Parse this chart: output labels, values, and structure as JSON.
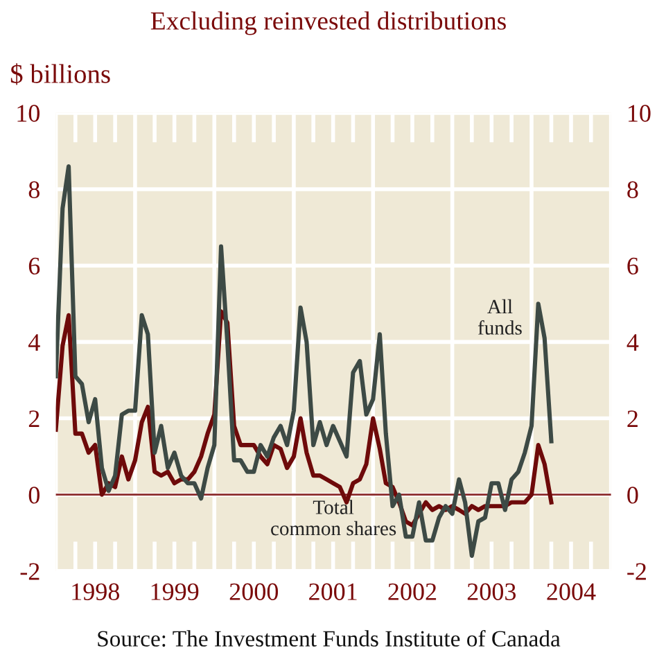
{
  "chart_data": {
    "type": "line",
    "title": "Excluding reinvested distributions",
    "ylabel": "$ billions",
    "x": [
      "1998-01",
      "1998-02",
      "1998-03",
      "1998-04",
      "1998-05",
      "1998-06",
      "1998-07",
      "1998-08",
      "1998-09",
      "1998-10",
      "1998-11",
      "1998-12",
      "1999-01",
      "1999-02",
      "1999-03",
      "1999-04",
      "1999-05",
      "1999-06",
      "1999-07",
      "1999-08",
      "1999-09",
      "1999-10",
      "1999-11",
      "1999-12",
      "2000-01",
      "2000-02",
      "2000-03",
      "2000-04",
      "2000-05",
      "2000-06",
      "2000-07",
      "2000-08",
      "2000-09",
      "2000-10",
      "2000-11",
      "2000-12",
      "2001-01",
      "2001-02",
      "2001-03",
      "2001-04",
      "2001-05",
      "2001-06",
      "2001-07",
      "2001-08",
      "2001-09",
      "2001-10",
      "2001-11",
      "2001-12",
      "2002-01",
      "2002-02",
      "2002-03",
      "2002-04",
      "2002-05",
      "2002-06",
      "2002-07",
      "2002-08",
      "2002-09",
      "2002-10",
      "2002-11",
      "2002-12",
      "2003-01",
      "2003-02",
      "2003-03",
      "2003-04",
      "2003-05",
      "2003-06",
      "2003-07",
      "2003-08",
      "2003-09",
      "2003-10",
      "2003-11",
      "2003-12",
      "2004-01",
      "2004-02",
      "2004-03",
      "2004-04"
    ],
    "series": [
      {
        "name": "All\nfunds",
        "color": "#3d4a45",
        "values": [
          3.1,
          7.5,
          8.6,
          3.1,
          2.9,
          1.9,
          2.5,
          0.7,
          0.1,
          0.5,
          2.1,
          2.2,
          2.2,
          4.7,
          4.2,
          1.1,
          1.8,
          0.7,
          1.1,
          0.5,
          0.3,
          0.3,
          -0.1,
          0.7,
          1.3,
          6.5,
          4.0,
          0.9,
          0.9,
          0.6,
          0.6,
          1.3,
          1.0,
          1.5,
          1.8,
          1.3,
          2.2,
          4.9,
          4.0,
          1.3,
          1.9,
          1.3,
          1.8,
          1.4,
          1.0,
          3.2,
          3.5,
          2.1,
          2.5,
          4.2,
          1.6,
          -0.3,
          0.0,
          -1.1,
          -1.1,
          -0.2,
          -1.2,
          -1.2,
          -0.6,
          -0.3,
          -0.5,
          0.4,
          -0.2,
          -1.6,
          -0.7,
          -0.6,
          0.3,
          0.3,
          -0.4,
          0.4,
          0.6,
          1.1,
          1.8,
          5.0,
          4.1,
          1.4
        ]
      },
      {
        "name": "Total\ncommon shares",
        "color": "#6e0a0a",
        "values": [
          1.7,
          3.9,
          4.7,
          1.6,
          1.6,
          1.1,
          1.3,
          0.0,
          0.3,
          0.2,
          1.0,
          0.4,
          0.9,
          1.9,
          2.3,
          0.6,
          0.5,
          0.6,
          0.3,
          0.4,
          0.4,
          0.6,
          1.0,
          1.6,
          2.1,
          4.8,
          4.5,
          1.8,
          1.3,
          1.3,
          1.3,
          1.0,
          0.8,
          1.3,
          1.2,
          0.7,
          1.0,
          2.0,
          1.1,
          0.5,
          0.5,
          0.4,
          0.3,
          0.2,
          -0.2,
          0.3,
          0.4,
          0.8,
          2.0,
          1.2,
          0.3,
          0.2,
          -0.2,
          -0.7,
          -0.8,
          -0.5,
          -0.2,
          -0.4,
          -0.3,
          -0.4,
          -0.3,
          -0.4,
          -0.5,
          -0.3,
          -0.4,
          -0.3,
          -0.3,
          -0.3,
          -0.3,
          -0.2,
          -0.2,
          -0.2,
          0.0,
          1.3,
          0.8,
          -0.2
        ]
      }
    ],
    "xlim": [
      "1998-01",
      "2005-01"
    ],
    "xticks": [
      {
        "value": "1998-01",
        "label": null
      },
      {
        "value": "1998-07",
        "label": "1998"
      },
      {
        "value": "1999-01",
        "label": null
      },
      {
        "value": "1999-07",
        "label": "1999"
      },
      {
        "value": "2000-01",
        "label": null
      },
      {
        "value": "2000-07",
        "label": "2000"
      },
      {
        "value": "2001-01",
        "label": null
      },
      {
        "value": "2001-07",
        "label": "2001"
      },
      {
        "value": "2002-01",
        "label": null
      },
      {
        "value": "2002-07",
        "label": "2002"
      },
      {
        "value": "2003-01",
        "label": null
      },
      {
        "value": "2003-07",
        "label": "2003"
      },
      {
        "value": "2004-01",
        "label": null
      },
      {
        "value": "2004-07",
        "label": "2004"
      },
      {
        "value": "2005-01",
        "label": null
      }
    ],
    "ylim": [
      -2,
      10
    ],
    "yticks": [
      -2,
      0,
      2,
      4,
      6,
      8,
      10
    ],
    "y2lim": [
      -2,
      10
    ],
    "y2ticks": [
      -2,
      0,
      2,
      4,
      6,
      8,
      10
    ],
    "ref_lines": [
      {
        "axis": "y",
        "value": 0,
        "color": "#8b2a2a"
      }
    ],
    "grid": true,
    "legend": false,
    "marker": "none",
    "line_style": "solid",
    "annotations": [
      "Source: The Investment Funds Institute of Canada"
    ]
  }
}
